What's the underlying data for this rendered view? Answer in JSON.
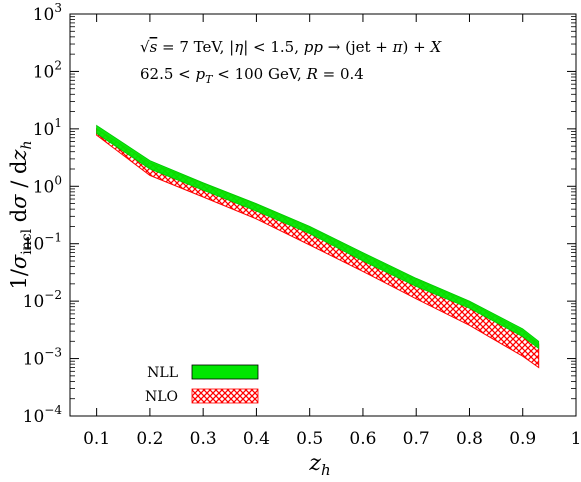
{
  "chart_data": {
    "type": "area",
    "title": "",
    "xlabel": "z_h",
    "ylabel": "1/σ_incl dσ / dz_h",
    "xlim": [
      0.05,
      1.0
    ],
    "ylim": [
      0.0001,
      1000
    ],
    "yscale": "log",
    "grid": false,
    "legend_position": "bottom-left",
    "x_ticks": [
      {
        "value": 0.1,
        "label": "0.1"
      },
      {
        "value": 0.2,
        "label": "0.2"
      },
      {
        "value": 0.3,
        "label": "0.3"
      },
      {
        "value": 0.4,
        "label": "0.4"
      },
      {
        "value": 0.5,
        "label": "0.5"
      },
      {
        "value": 0.6,
        "label": "0.6"
      },
      {
        "value": 0.7,
        "label": "0.7"
      },
      {
        "value": 0.8,
        "label": "0.8"
      },
      {
        "value": 0.9,
        "label": "0.9"
      },
      {
        "value": 1.0,
        "label": "1"
      }
    ],
    "y_ticks": [
      {
        "value": 0.0001,
        "mantissa": "10",
        "exp": "−4"
      },
      {
        "value": 0.001,
        "mantissa": "10",
        "exp": "−3"
      },
      {
        "value": 0.01,
        "mantissa": "10",
        "exp": "−2"
      },
      {
        "value": 0.1,
        "mantissa": "10",
        "exp": "−1"
      },
      {
        "value": 1,
        "mantissa": "10",
        "exp": "0"
      },
      {
        "value": 10,
        "mantissa": "10",
        "exp": "1"
      },
      {
        "value": 100,
        "mantissa": "10",
        "exp": "2"
      },
      {
        "value": 1000,
        "mantissa": "10",
        "exp": "3"
      }
    ],
    "annotations": [
      "√s = 7 TeV, |η| < 1.5, pp → (jet + π) + X",
      "62.5 < p_T < 100 GeV, R = 0.4"
    ],
    "x": [
      0.1,
      0.2,
      0.3,
      0.4,
      0.5,
      0.6,
      0.7,
      0.8,
      0.9,
      0.93
    ],
    "series": [
      {
        "name": "NLL",
        "color": "#00e600",
        "lower": [
          8.3,
          2.0,
          0.85,
          0.37,
          0.15,
          0.05,
          0.018,
          0.0075,
          0.0024,
          0.0015
        ],
        "upper": [
          11.5,
          2.8,
          1.15,
          0.5,
          0.2,
          0.07,
          0.025,
          0.01,
          0.0033,
          0.002
        ]
      },
      {
        "name": "NLO",
        "color": "#ff0000",
        "lower": [
          7.8,
          1.55,
          0.65,
          0.27,
          0.095,
          0.033,
          0.011,
          0.0038,
          0.0011,
          0.0007
        ],
        "upper": [
          10.0,
          2.55,
          1.12,
          0.48,
          0.19,
          0.066,
          0.024,
          0.0095,
          0.003,
          0.0018
        ]
      }
    ]
  }
}
